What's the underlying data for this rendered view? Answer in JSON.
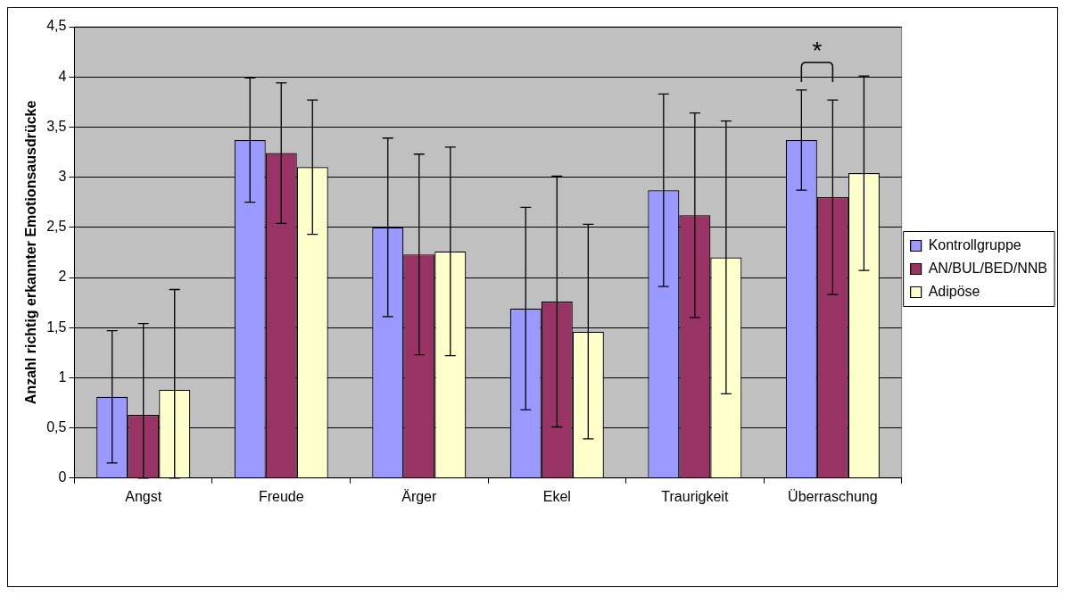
{
  "chart_data": {
    "type": "bar",
    "ylabel": "Anzahl richtig erkannter Emotionsausdrücke",
    "categories": [
      "Angst",
      "Freude",
      "Ärger",
      "Ekel",
      "Traurigkeit",
      "Überraschung"
    ],
    "series": [
      {
        "name": "Kontrollgruppe",
        "color": "#9999ff",
        "values": [
          0.81,
          3.37,
          2.5,
          1.69,
          2.87,
          3.37
        ],
        "errors": [
          0.66,
          0.62,
          0.89,
          1.01,
          0.96,
          0.5
        ]
      },
      {
        "name": "AN/BUL/BED/NNB",
        "color": "#993366",
        "values": [
          0.63,
          3.24,
          2.23,
          1.76,
          2.62,
          2.8
        ],
        "errors": [
          [
            0,
            1.54
          ],
          0.7,
          1.0,
          1.25,
          1.02,
          0.97
        ]
      },
      {
        "name": "Adipöse",
        "color": "#ffffcc",
        "values": [
          0.88,
          3.1,
          2.26,
          1.46,
          2.2,
          3.04
        ],
        "errors": [
          [
            0,
            1.88
          ],
          0.67,
          1.04,
          1.07,
          1.36,
          0.97
        ]
      }
    ],
    "ylim": [
      0,
      4.5
    ],
    "yticks": [
      {
        "value": 0,
        "label": "0"
      },
      {
        "value": 0.5,
        "label": "0,5"
      },
      {
        "value": 1,
        "label": "1"
      },
      {
        "value": 1.5,
        "label": "1,5"
      },
      {
        "value": 2,
        "label": "2"
      },
      {
        "value": 2.5,
        "label": "2,5"
      },
      {
        "value": 3,
        "label": "3"
      },
      {
        "value": 3.5,
        "label": "3,5"
      },
      {
        "value": 4,
        "label": "4"
      },
      {
        "value": 4.5,
        "label": "4,5"
      }
    ],
    "grid": "y",
    "legend": "right",
    "annotations": [
      "*"
    ]
  }
}
